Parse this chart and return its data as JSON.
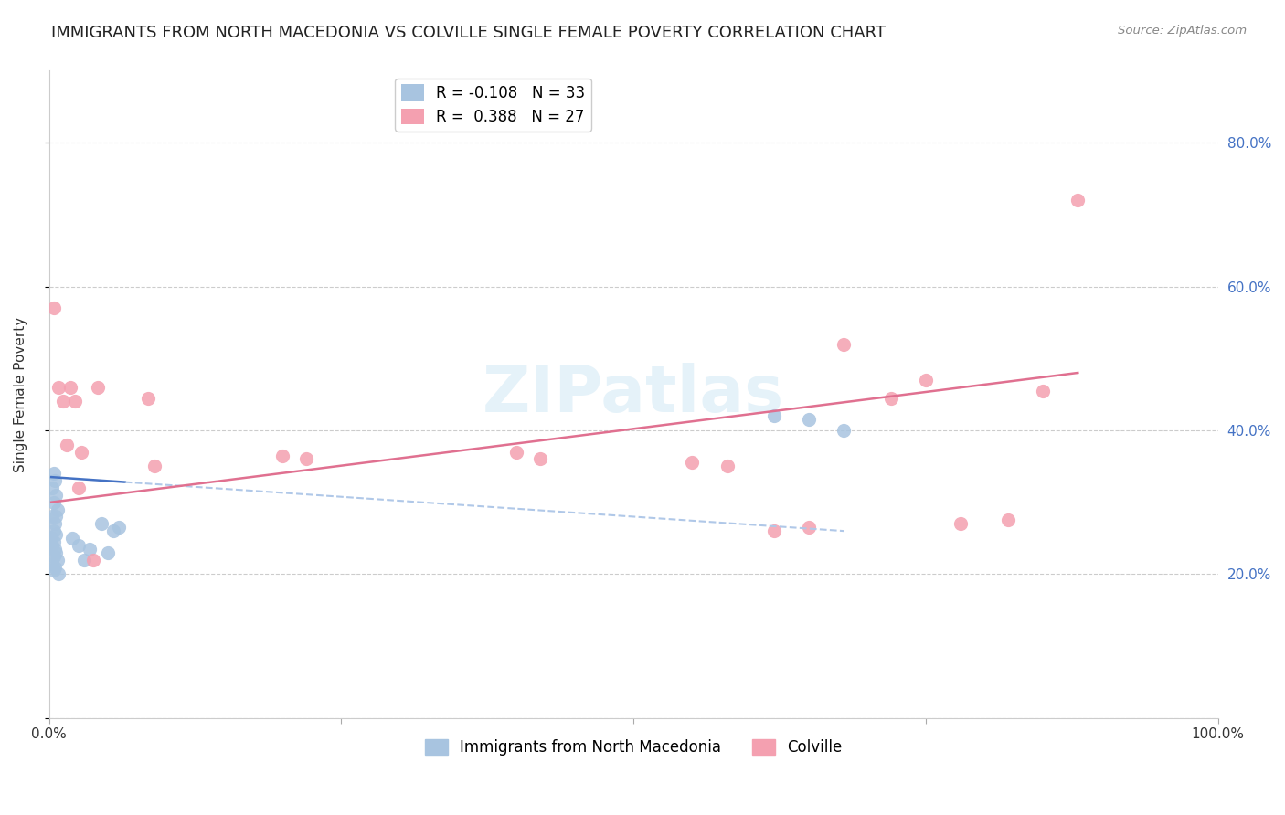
{
  "title": "IMMIGRANTS FROM NORTH MACEDONIA VS COLVILLE SINGLE FEMALE POVERTY CORRELATION CHART",
  "source": "Source: ZipAtlas.com",
  "ylabel": "Single Female Poverty",
  "xlabel": "",
  "blue_R": -0.108,
  "blue_N": 33,
  "pink_R": 0.388,
  "pink_N": 27,
  "blue_color": "#a8c4e0",
  "pink_color": "#f4a0b0",
  "blue_line_color": "#4472c4",
  "pink_line_color": "#e07090",
  "blue_dashed_color": "#b0c8e8",
  "watermark": "ZIPatlas",
  "xlim": [
    0.0,
    1.0
  ],
  "ylim": [
    0.0,
    0.9
  ],
  "x_ticks": [
    0.0,
    0.25,
    0.5,
    0.75,
    1.0
  ],
  "x_tick_labels": [
    "0.0%",
    "",
    "",
    "",
    "100.0%"
  ],
  "y_ticks": [
    0.0,
    0.2,
    0.4,
    0.6,
    0.8
  ],
  "y_tick_labels": [
    "",
    "20.0%",
    "40.0%",
    "60.0%",
    "80.0%"
  ],
  "blue_points_x": [
    0.004,
    0.005,
    0.003,
    0.006,
    0.004,
    0.007,
    0.003,
    0.005,
    0.004,
    0.006,
    0.002,
    0.004,
    0.003,
    0.005,
    0.006,
    0.004,
    0.007,
    0.003,
    0.005,
    0.004,
    0.008,
    0.006,
    0.03,
    0.045,
    0.06,
    0.055,
    0.02,
    0.025,
    0.035,
    0.05,
    0.62,
    0.65,
    0.68
  ],
  "blue_points_y": [
    0.34,
    0.33,
    0.32,
    0.31,
    0.3,
    0.29,
    0.28,
    0.27,
    0.26,
    0.255,
    0.25,
    0.245,
    0.24,
    0.235,
    0.23,
    0.225,
    0.22,
    0.215,
    0.21,
    0.205,
    0.2,
    0.28,
    0.22,
    0.27,
    0.265,
    0.26,
    0.25,
    0.24,
    0.235,
    0.23,
    0.42,
    0.415,
    0.4
  ],
  "pink_points_x": [
    0.004,
    0.008,
    0.012,
    0.015,
    0.018,
    0.022,
    0.025,
    0.028,
    0.038,
    0.042,
    0.085,
    0.09,
    0.2,
    0.22,
    0.4,
    0.42,
    0.55,
    0.58,
    0.62,
    0.65,
    0.68,
    0.72,
    0.75,
    0.78,
    0.82,
    0.85,
    0.88
  ],
  "pink_points_y": [
    0.57,
    0.46,
    0.44,
    0.38,
    0.46,
    0.44,
    0.32,
    0.37,
    0.22,
    0.46,
    0.445,
    0.35,
    0.365,
    0.36,
    0.37,
    0.36,
    0.355,
    0.35,
    0.26,
    0.265,
    0.52,
    0.445,
    0.47,
    0.27,
    0.275,
    0.455,
    0.72
  ],
  "blue_line_x0": 0.002,
  "blue_line_y0": 0.335,
  "blue_line_x1": 0.68,
  "blue_line_y1": 0.26,
  "pink_line_x0": 0.002,
  "pink_line_y0": 0.3,
  "pink_line_x1": 0.88,
  "pink_line_y1": 0.48,
  "legend_label_blue": "Immigrants from North Macedonia",
  "legend_label_pink": "Colville",
  "title_fontsize": 13,
  "axis_label_fontsize": 11,
  "tick_fontsize": 11,
  "legend_fontsize": 12,
  "right_tick_color": "#4472c4",
  "background_color": "#ffffff"
}
